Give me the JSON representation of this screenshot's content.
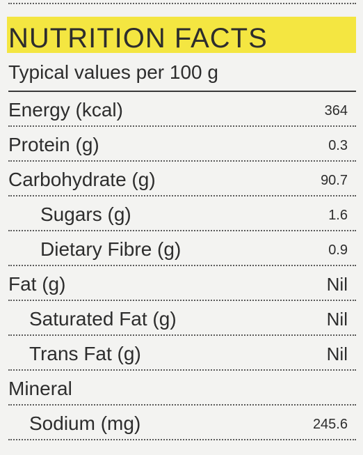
{
  "panel": {
    "title": "NUTRITION FACTS",
    "subtitle": "Typical values per 100 g"
  },
  "rows": [
    {
      "label": "Energy (kcal)",
      "value": "364"
    },
    {
      "label": "Protein (g)",
      "value": "0.3"
    },
    {
      "label": "Carbohydrate (g)",
      "value": "90.7"
    },
    {
      "label": "Sugars (g)",
      "value": "1.6"
    },
    {
      "label": "Dietary Fibre (g)",
      "value": "0.9"
    },
    {
      "label": "Fat (g)",
      "value": "Nil"
    },
    {
      "label": "Saturated Fat (g)",
      "value": "Nil"
    },
    {
      "label": "Trans Fat (g)",
      "value": "Nil"
    },
    {
      "label": "Mineral",
      "value": ""
    },
    {
      "label": "Sodium (mg)",
      "value": "245.6"
    }
  ],
  "colors": {
    "highlight": "#f4e641",
    "background": "#f3f3f1",
    "text": "#2d2d2d"
  }
}
